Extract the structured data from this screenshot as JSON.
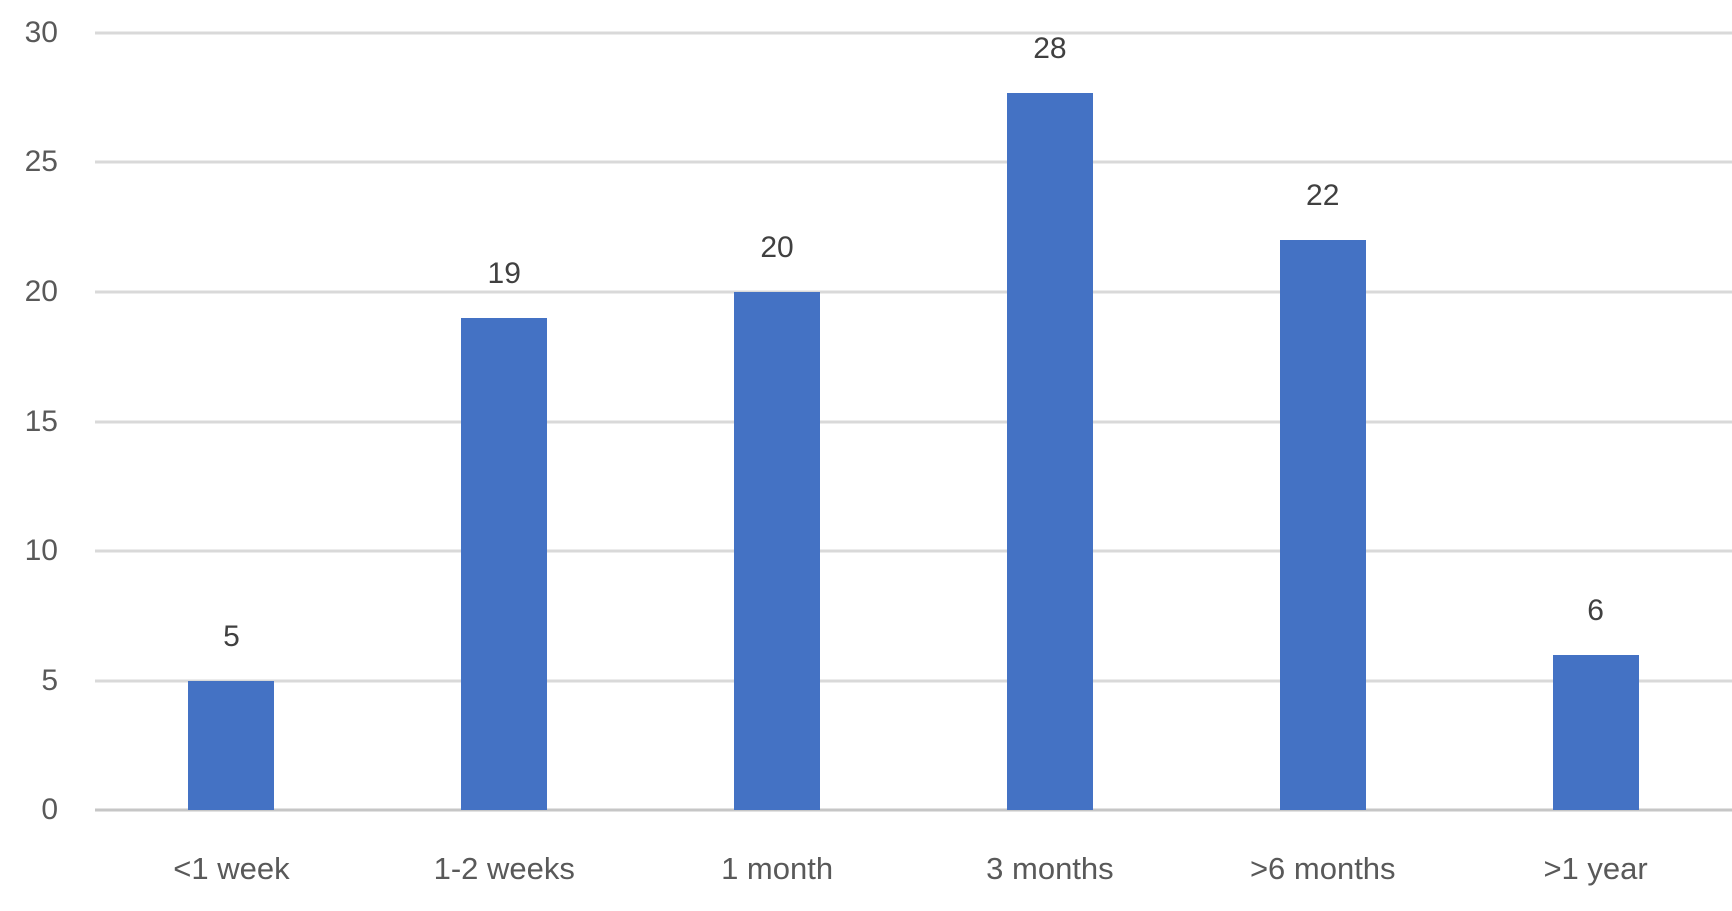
{
  "chart_data": {
    "type": "bar",
    "title": "",
    "xlabel": "",
    "ylabel": "",
    "categories": [
      "<1 week",
      "1-2 weeks",
      "1 month",
      "3 months",
      ">6 months",
      ">1 year"
    ],
    "values": [
      5,
      19,
      20,
      28,
      22,
      6
    ],
    "ylim": [
      0,
      30
    ],
    "yticks": [
      0,
      5,
      10,
      15,
      20,
      25,
      30
    ],
    "grid": true,
    "legend": false,
    "data_labels_shown": true,
    "colors": {
      "bar": "#4472C4",
      "gridline": "#D9D9D9",
      "axis_line": "#C6C6C6",
      "value_label": "#404040",
      "tick_label": "#595959",
      "background": "#FFFFFF"
    }
  }
}
